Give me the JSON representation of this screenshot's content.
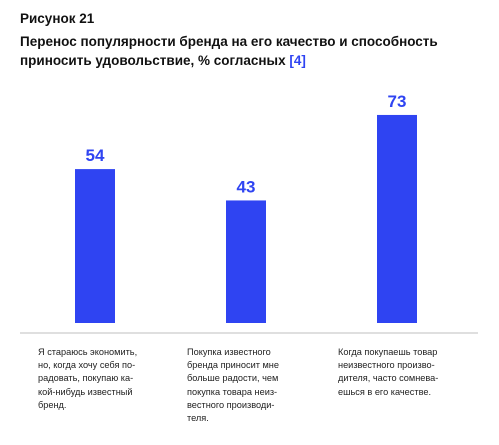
{
  "figure_label": "Рисунок 21",
  "title": "Перенос популярности бренда на его качество и способность приносить удовольствие, % согласных",
  "reference": "[4]",
  "colors": {
    "bar": "#2f44f2",
    "value": "#2f44f2",
    "axis": "#bfbfbf"
  },
  "chart_data": {
    "type": "bar",
    "title": "Перенос популярности бренда на его качество и способность приносить удовольствие, % согласных",
    "categories": [
      "Я стараюсь экономить,\nно, когда хочу себя по-\nрадовать, покупаю ка-\nкой-нибудь известный\nбренд.",
      "Покупка известного\nбренда приносит мне\nбольше радости, чем\nпокупка товара неиз-\nвестного производи-\nтеля.",
      "Когда покупаешь товар\nнеизвестного произво-\nдителя, часто сомнева-\nешься в его качестве."
    ],
    "values": [
      54,
      43,
      73
    ],
    "value_labels": [
      "54",
      "43",
      "73"
    ],
    "ylim": [
      0,
      100
    ],
    "grid": false,
    "legend": "none"
  }
}
